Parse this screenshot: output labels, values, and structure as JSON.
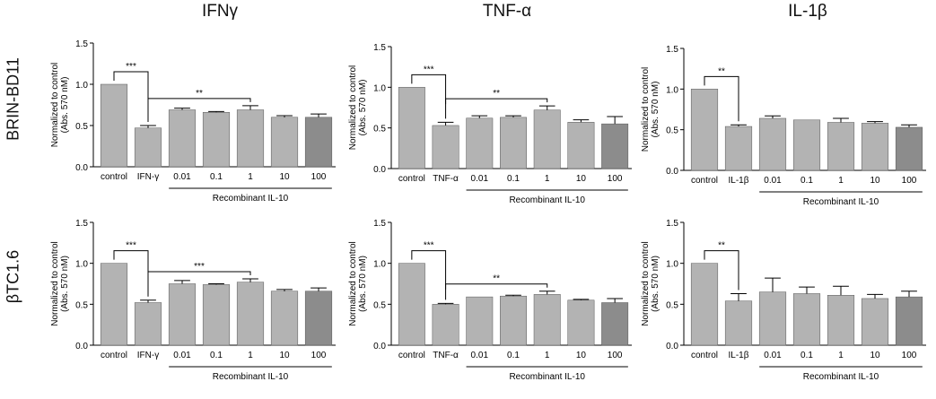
{
  "column_titles": [
    "IFNγ",
    "TNF-α",
    "IL-1β"
  ],
  "row_titles": [
    "BRIN-BD11",
    "βTC1.6"
  ],
  "colors": {
    "bar": "#b3b3b3",
    "bar_dark": "#8c8c8c",
    "axis": "#000000"
  },
  "chart_data": [
    {
      "type": "bar",
      "panel": "BRIN-BD11 / IFNγ",
      "categories": [
        "control",
        "IFN-γ",
        "0.01",
        "0.1",
        "1",
        "10",
        "100"
      ],
      "values": [
        1.0,
        0.47,
        0.69,
        0.66,
        0.69,
        0.6,
        0.6
      ],
      "errors": [
        0,
        0.03,
        0.02,
        0.01,
        0.05,
        0.02,
        0.04
      ],
      "ylabel": [
        "Normalized to control",
        "(Abs. 570 nM)"
      ],
      "yticks": [
        "0.0",
        "0.5",
        "1.0",
        "1.5"
      ],
      "ylim": [
        0,
        1.5
      ],
      "group_label": "Recombinant IL-10",
      "annotations": [
        {
          "from": 0,
          "to": 1,
          "label": "***"
        },
        {
          "from": 1,
          "to": 4,
          "label": "**"
        }
      ]
    },
    {
      "type": "bar",
      "panel": "BRIN-BD11 / TNF-α",
      "categories": [
        "control",
        "TNF-α",
        "0.01",
        "0.1",
        "1",
        "10",
        "100"
      ],
      "values": [
        1.0,
        0.53,
        0.62,
        0.63,
        0.72,
        0.57,
        0.55
      ],
      "errors": [
        0,
        0.04,
        0.03,
        0.02,
        0.05,
        0.03,
        0.09
      ],
      "ylabel": [
        "Normalized to control",
        "(Abs. 570 nM)"
      ],
      "yticks": [
        "0.0",
        "0.5",
        "1.0",
        "1.5"
      ],
      "ylim": [
        0,
        1.5
      ],
      "group_label": "Recombinant IL-10",
      "annotations": [
        {
          "from": 0,
          "to": 1,
          "label": "***"
        },
        {
          "from": 1,
          "to": 4,
          "label": "**"
        }
      ]
    },
    {
      "type": "bar",
      "panel": "BRIN-BD11 / IL-1β",
      "categories": [
        "control",
        "IL-1β",
        "0.01",
        "0.1",
        "1",
        "10",
        "100"
      ],
      "values": [
        1.0,
        0.54,
        0.64,
        0.62,
        0.59,
        0.58,
        0.53
      ],
      "errors": [
        0,
        0.02,
        0.03,
        0.0,
        0.05,
        0.02,
        0.03
      ],
      "ylabel": [
        "Normalized to control",
        "(Abs. 570 nM)"
      ],
      "yticks": [
        "0.0",
        "0.5",
        "1.0",
        "1.5"
      ],
      "ylim": [
        0,
        1.5
      ],
      "group_label": "Recombinant IL-10",
      "annotations": [
        {
          "from": 0,
          "to": 1,
          "label": "**"
        }
      ]
    },
    {
      "type": "bar",
      "panel": "βTC1.6 / IFNγ",
      "categories": [
        "control",
        "IFN-γ",
        "0.01",
        "0.1",
        "1",
        "10",
        "100"
      ],
      "values": [
        1.0,
        0.52,
        0.75,
        0.74,
        0.77,
        0.66,
        0.66
      ],
      "errors": [
        0,
        0.03,
        0.04,
        0.01,
        0.04,
        0.02,
        0.04
      ],
      "ylabel": [
        "Normalized to control",
        "(Abs. 570 nM)"
      ],
      "yticks": [
        "0.0",
        "0.5",
        "1.0",
        "1.5"
      ],
      "ylim": [
        0,
        1.5
      ],
      "group_label": "Recombinant IL-10",
      "annotations": [
        {
          "from": 0,
          "to": 1,
          "label": "***"
        },
        {
          "from": 1,
          "to": 4,
          "label": "***"
        }
      ]
    },
    {
      "type": "bar",
      "panel": "βTC1.6 / TNF-α",
      "categories": [
        "control",
        "TNF-α",
        "0.01",
        "0.1",
        "1",
        "10",
        "100"
      ],
      "values": [
        1.0,
        0.5,
        0.59,
        0.6,
        0.62,
        0.55,
        0.52
      ],
      "errors": [
        0,
        0.01,
        0.0,
        0.01,
        0.04,
        0.01,
        0.05
      ],
      "ylabel": [
        "Normalized to control",
        "(Abs. 570 nM)"
      ],
      "yticks": [
        "0.0",
        "0.5",
        "1.0",
        "1.5"
      ],
      "ylim": [
        0,
        1.5
      ],
      "group_label": "Recombinant IL-10",
      "annotations": [
        {
          "from": 0,
          "to": 1,
          "label": "***"
        },
        {
          "from": 1,
          "to": 4,
          "label": "**"
        }
      ]
    },
    {
      "type": "bar",
      "panel": "βTC1.6 / IL-1β",
      "categories": [
        "control",
        "IL-1β",
        "0.01",
        "0.1",
        "1",
        "10",
        "100"
      ],
      "values": [
        1.0,
        0.54,
        0.65,
        0.63,
        0.61,
        0.57,
        0.59
      ],
      "errors": [
        0,
        0.09,
        0.17,
        0.08,
        0.11,
        0.05,
        0.07
      ],
      "ylabel": [
        "Normalized to control",
        "(Abs. 570 nM)"
      ],
      "yticks": [
        "0.0",
        "0.5",
        "1.0",
        "1.5"
      ],
      "ylim": [
        0,
        1.5
      ],
      "group_label": "Recombinant IL-10",
      "annotations": [
        {
          "from": 0,
          "to": 1,
          "label": "**"
        }
      ]
    }
  ]
}
